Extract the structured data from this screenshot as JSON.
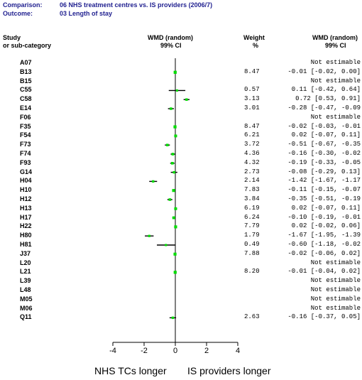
{
  "header": {
    "comparison_label": "Comparison:",
    "comparison_value": "06 NHS treatment centres vs. IS providers (2006/7)",
    "outcome_label": "Outcome:",
    "outcome_value": "03 Length of stay"
  },
  "columns": {
    "study_line1": "Study",
    "study_line2": "or sub-category",
    "plot_line1": "WMD (random)",
    "plot_line2": "99% CI",
    "weight_line1": "Weight",
    "weight_line2": "%",
    "ci_line1": "WMD (random)",
    "ci_line2": "99% CI"
  },
  "footer": {
    "left_label": "NHS TCs longer",
    "right_label": "IS providers longer"
  },
  "colors": {
    "marker": "#00dd00",
    "header_text": "#1f1f8f"
  },
  "chart_data": {
    "type": "forest",
    "xlim": [
      -4,
      4
    ],
    "xticks": [
      "-4",
      "-2",
      "0",
      "2",
      "4"
    ],
    "studies": [
      {
        "id": "A07",
        "weight": "",
        "ci_text": "Not estimable",
        "est": null,
        "lo": null,
        "hi": null
      },
      {
        "id": "B13",
        "weight": "8.47",
        "ci_text": "-0.01 [-0.02, 0.00]",
        "est": -0.01,
        "lo": -0.02,
        "hi": 0.0
      },
      {
        "id": "B15",
        "weight": "",
        "ci_text": "Not estimable",
        "est": null,
        "lo": null,
        "hi": null
      },
      {
        "id": "C55",
        "weight": "0.57",
        "ci_text": "0.11 [-0.42, 0.64]",
        "est": 0.11,
        "lo": -0.42,
        "hi": 0.64
      },
      {
        "id": "C58",
        "weight": "3.13",
        "ci_text": "0.72 [0.53, 0.91]",
        "est": 0.72,
        "lo": 0.53,
        "hi": 0.91
      },
      {
        "id": "E14",
        "weight": "3.01",
        "ci_text": "-0.28 [-0.47, -0.09",
        "est": -0.28,
        "lo": -0.47,
        "hi": -0.09
      },
      {
        "id": "F06",
        "weight": "",
        "ci_text": "Not estimable",
        "est": null,
        "lo": null,
        "hi": null
      },
      {
        "id": "F35",
        "weight": "8.47",
        "ci_text": "-0.02 [-0.03, -0.01",
        "est": -0.02,
        "lo": -0.03,
        "hi": -0.01
      },
      {
        "id": "F54",
        "weight": "6.21",
        "ci_text": "0.02 [-0.07, 0.11]",
        "est": 0.02,
        "lo": -0.07,
        "hi": 0.11
      },
      {
        "id": "F73",
        "weight": "3.72",
        "ci_text": "-0.51 [-0.67, -0.35",
        "est": -0.51,
        "lo": -0.67,
        "hi": -0.35
      },
      {
        "id": "F74",
        "weight": "4.36",
        "ci_text": "-0.16 [-0.30, -0.02",
        "est": -0.16,
        "lo": -0.3,
        "hi": -0.02
      },
      {
        "id": "F93",
        "weight": "4.32",
        "ci_text": "-0.19 [-0.33, -0.05",
        "est": -0.19,
        "lo": -0.33,
        "hi": -0.05
      },
      {
        "id": "G14",
        "weight": "2.73",
        "ci_text": "-0.08 [-0.29, 0.13]",
        "est": -0.08,
        "lo": -0.29,
        "hi": 0.13
      },
      {
        "id": "H04",
        "weight": "2.14",
        "ci_text": "-1.42 [-1.67, -1.17",
        "est": -1.42,
        "lo": -1.67,
        "hi": -1.17
      },
      {
        "id": "H10",
        "weight": "7.83",
        "ci_text": "-0.11 [-0.15, -0.07",
        "est": -0.11,
        "lo": -0.15,
        "hi": -0.07
      },
      {
        "id": "H12",
        "weight": "3.84",
        "ci_text": "-0.35 [-0.51, -0.19",
        "est": -0.35,
        "lo": -0.51,
        "hi": -0.19
      },
      {
        "id": "H13",
        "weight": "6.19",
        "ci_text": "0.02 [-0.07, 0.11]",
        "est": 0.02,
        "lo": -0.07,
        "hi": 0.11
      },
      {
        "id": "H17",
        "weight": "6.24",
        "ci_text": "-0.10 [-0.19, -0.01",
        "est": -0.1,
        "lo": -0.19,
        "hi": -0.01
      },
      {
        "id": "H22",
        "weight": "7.79",
        "ci_text": "0.02 [-0.02, 0.06]",
        "est": 0.02,
        "lo": -0.02,
        "hi": 0.06
      },
      {
        "id": "H80",
        "weight": "1.79",
        "ci_text": "-1.67 [-1.95, -1.39",
        "est": -1.67,
        "lo": -1.95,
        "hi": -1.39
      },
      {
        "id": "H81",
        "weight": "0.49",
        "ci_text": "-0.60 [-1.18, -0.02",
        "est": -0.6,
        "lo": -1.18,
        "hi": -0.02
      },
      {
        "id": "J37",
        "weight": "7.88",
        "ci_text": "-0.02 [-0.06, 0.02]",
        "est": -0.02,
        "lo": -0.06,
        "hi": 0.02
      },
      {
        "id": "L20",
        "weight": "",
        "ci_text": "Not estimable",
        "est": null,
        "lo": null,
        "hi": null
      },
      {
        "id": "L21",
        "weight": "8.20",
        "ci_text": "-0.01 [-0.04, 0.02]",
        "est": -0.01,
        "lo": -0.04,
        "hi": 0.02
      },
      {
        "id": "L39",
        "weight": "",
        "ci_text": "Not estimable",
        "est": null,
        "lo": null,
        "hi": null
      },
      {
        "id": "L48",
        "weight": "",
        "ci_text": "Not estimable",
        "est": null,
        "lo": null,
        "hi": null
      },
      {
        "id": "M05",
        "weight": "",
        "ci_text": "Not estimable",
        "est": null,
        "lo": null,
        "hi": null
      },
      {
        "id": "M06",
        "weight": "",
        "ci_text": "Not estimable",
        "est": null,
        "lo": null,
        "hi": null
      },
      {
        "id": "Q11",
        "weight": "2.63",
        "ci_text": "-0.16 [-0.37, 0.05]",
        "est": -0.16,
        "lo": -0.37,
        "hi": 0.05
      }
    ]
  }
}
